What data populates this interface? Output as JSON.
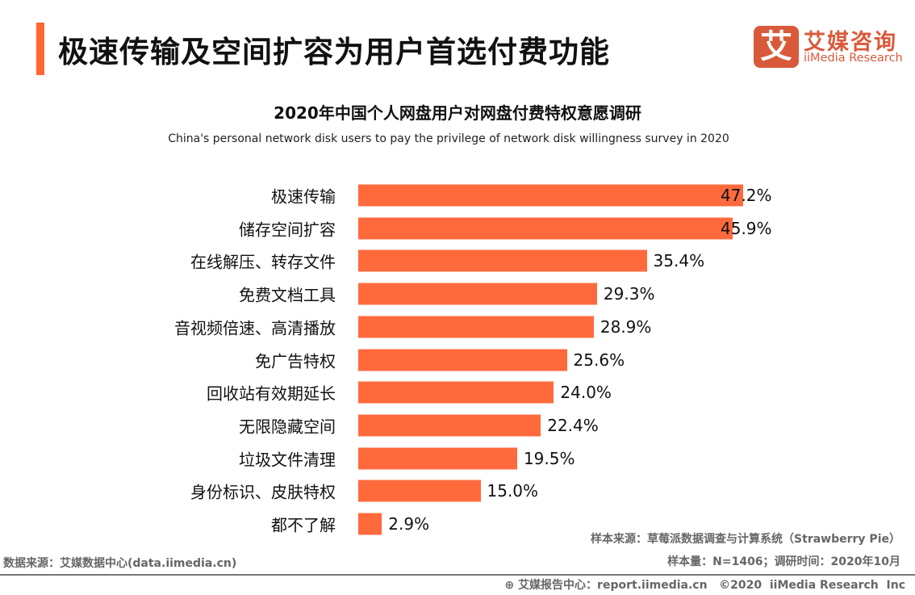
{
  "header": {
    "title": "极速传输及空间扩容为用户首选付费功能",
    "logo_mark": "艾",
    "logo_cn": "艾媒咨询",
    "logo_en": "iiMedia Research",
    "accent_color": "#ff6633"
  },
  "chart_data": {
    "type": "bar",
    "orientation": "horizontal",
    "title": "2020年中国个人网盘用户对网盘付费特权意愿调研",
    "subtitle": "China's personal network disk users to pay the privilege of network disk willingness survey in 2020",
    "categories": [
      "极速传输",
      "储存空间扩容",
      "在线解压、转存文件",
      "免费文档工具",
      "音视频倍速、高清播放",
      "免广告特权",
      "回收站有效期延长",
      "无限隐藏空间",
      "垃圾文件清理",
      "身份标识、皮肤特权",
      "都不了解"
    ],
    "values": [
      47.2,
      45.9,
      35.4,
      29.3,
      28.9,
      25.6,
      24.0,
      22.4,
      19.5,
      15.0,
      2.9
    ],
    "labels": [
      "47.2%",
      "45.9%",
      "35.4%",
      "29.3%",
      "28.9%",
      "25.6%",
      "24.0%",
      "22.4%",
      "19.5%",
      "15.0%",
      "2.9%"
    ],
    "unit": "%",
    "bar_color": "#ff6a3d",
    "grid": false
  },
  "footer": {
    "sample_source": "样本来源：草莓派数据调查与计算系统（Strawberry Pie）",
    "sample_size": "样本量：N=1406；调研时间：2020年10月",
    "data_source": "数据来源：艾媒数据中心(data.iimedia.cn)",
    "copyright": "艾媒报告中心：report.iimedia.cn   ©2020  iiMedia Research  Inc"
  }
}
